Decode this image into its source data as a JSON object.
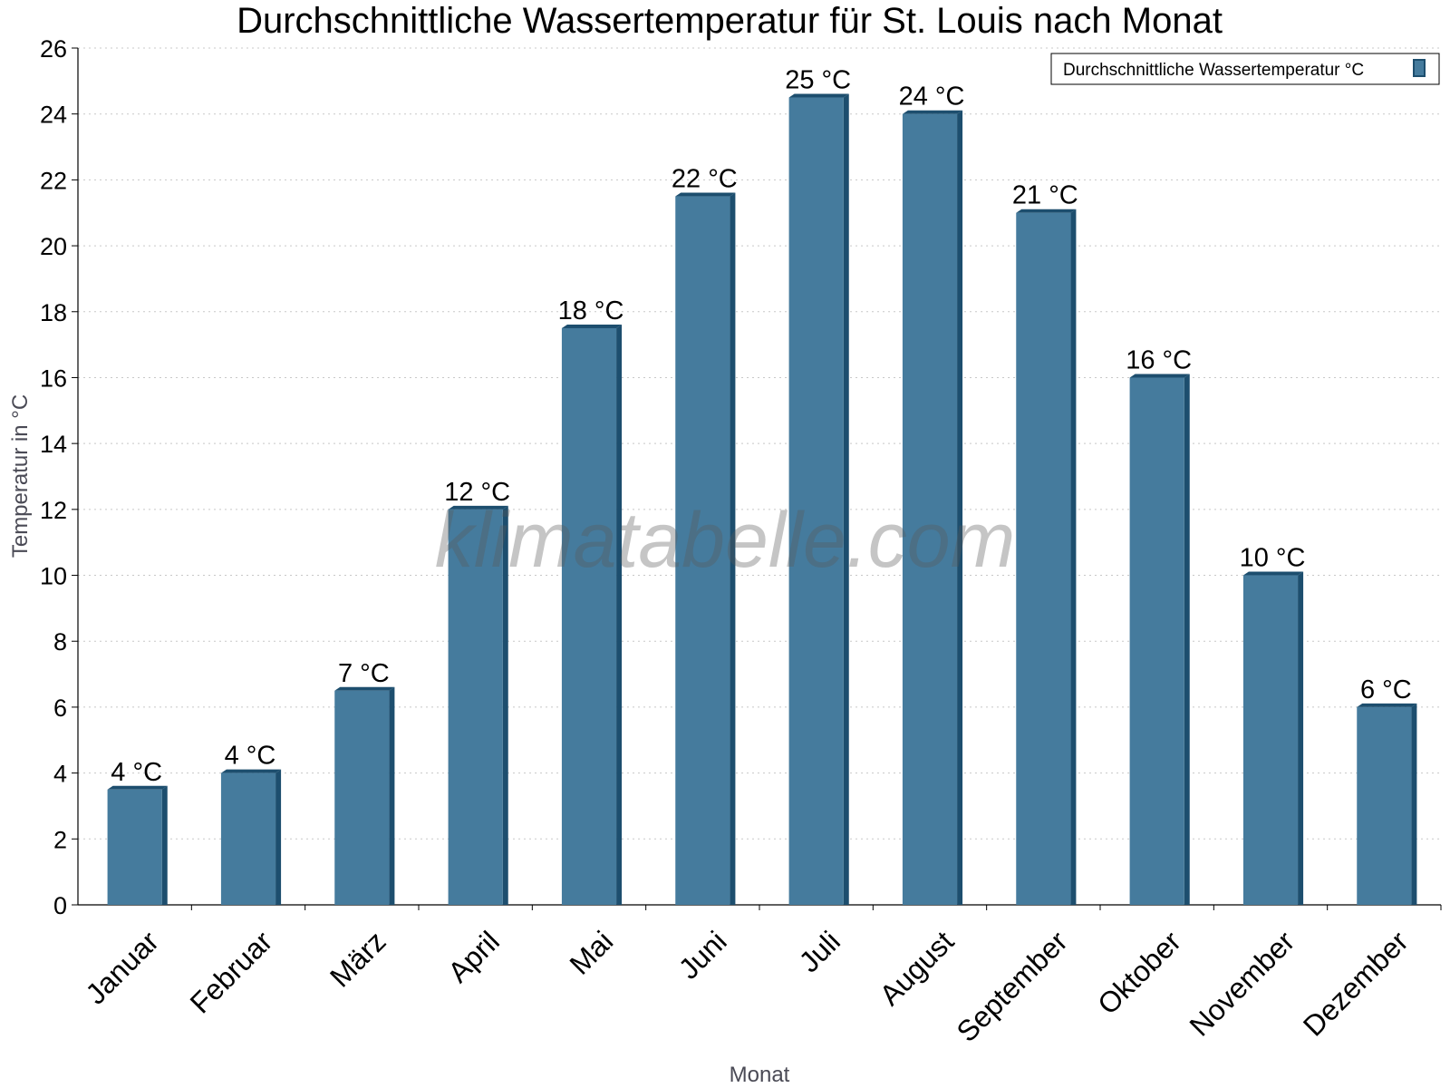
{
  "chart_data": {
    "type": "bar",
    "title": "Durchschnittliche Wassertemperatur für St. Louis nach Monat",
    "xlabel": "Monat",
    "ylabel": "Temperatur in °C",
    "categories": [
      "Januar",
      "Februar",
      "März",
      "April",
      "Mai",
      "Juni",
      "Juli",
      "August",
      "September",
      "Oktober",
      "November",
      "Dezember"
    ],
    "series": [
      {
        "name": "Durchschnittliche Wassertemperatur °C",
        "values": [
          3.5,
          4,
          6.5,
          12,
          17.5,
          21.5,
          24.5,
          24,
          21,
          16,
          10,
          6
        ],
        "labels": [
          "4 °C",
          "4 °C",
          "7 °C",
          "12 °C",
          "18 °C",
          "22 °C",
          "25 °C",
          "24 °C",
          "21 °C",
          "16 °C",
          "10 °C",
          "6 °C"
        ],
        "color": "#457b9d",
        "edge_color": "#1d4e6e"
      }
    ],
    "ylim": [
      0,
      26
    ],
    "yticks": [
      0,
      2,
      4,
      6,
      8,
      10,
      12,
      14,
      16,
      18,
      20,
      22,
      24,
      26
    ],
    "grid": true,
    "legend_position": "top-right",
    "watermark": "klimatabelle.com"
  }
}
